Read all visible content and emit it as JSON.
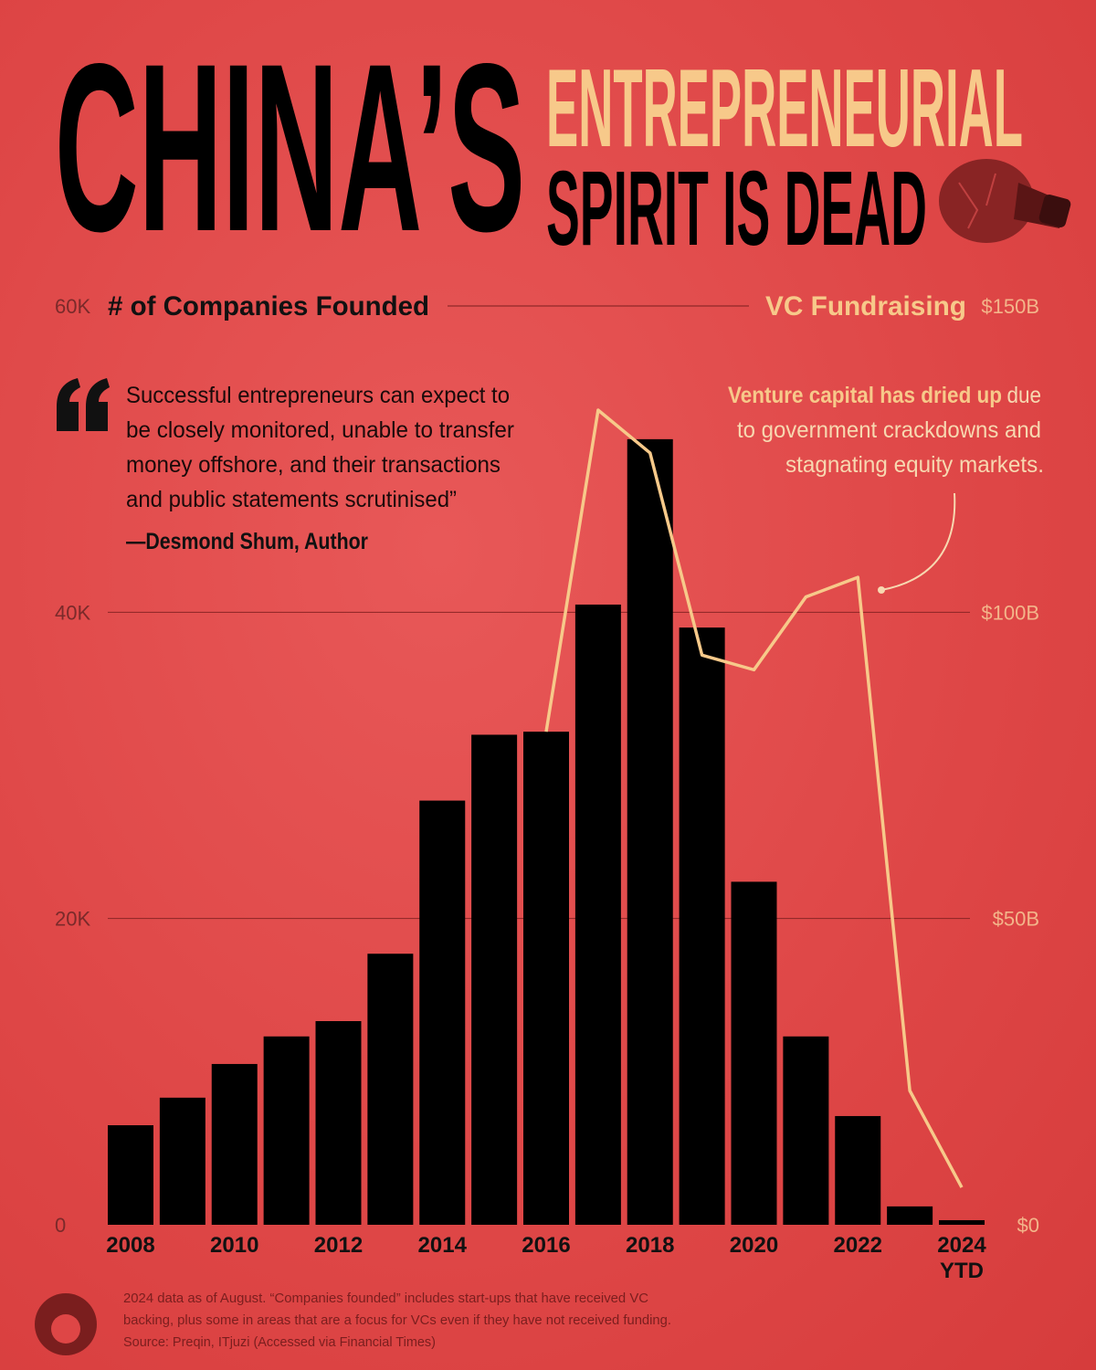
{
  "title": {
    "line1": "CHINA’S",
    "line2": "ENTREPRENEURIAL",
    "line3": "SPIRIT IS DEAD"
  },
  "quote": {
    "lines": [
      "Successful entrepreneurs can expect to",
      "be closely monitored, unable to transfer",
      "money offshore, and their transactions",
      "and public statements scrutinised”"
    ],
    "attribution": "—Desmond Shum, Author"
  },
  "annotation": {
    "bold": "Venture capital has dried up",
    "lines": [
      "due",
      "to government crackdowns and",
      "stagnating equity markets."
    ]
  },
  "footnote": [
    "2024 data as of August. “Companies founded” includes start-ups that have received VC",
    "backing, plus some in areas that are a focus for VCs even if they have not received funding.",
    "Source: Preqin, ITjuzi (Accessed via Financial Times)"
  ],
  "chart_data": {
    "type": "bar",
    "categories": [
      "2008",
      null,
      "2010",
      null,
      "2012",
      null,
      "2014",
      null,
      "2016",
      null,
      "2018",
      null,
      "2020",
      null,
      "2022",
      null,
      "2024 YTD"
    ],
    "series": [
      {
        "name": "# of Companies Founded",
        "type": "bar",
        "color": "#000000",
        "values": [
          6500,
          8300,
          10500,
          12300,
          13300,
          17700,
          27700,
          32000,
          32200,
          40500,
          51300,
          39000,
          22400,
          12300,
          7100,
          1200,
          300
        ]
      },
      {
        "name": "VC Fundraising",
        "type": "line",
        "axis": "y2",
        "color": "#f7c98a",
        "values": [
          null,
          null,
          null,
          null,
          null,
          null,
          null,
          null,
          80500000000,
          133000000000,
          126000000000,
          93000000000,
          90600000000,
          102500000000,
          105700000000,
          21900000000,
          6100000000
        ]
      }
    ],
    "ylim": [
      0,
      60000
    ],
    "yticks": [
      0,
      {
        "value": 20000,
        "label": "20K"
      },
      {
        "value": 40000,
        "label": "40K"
      },
      {
        "value": 60000,
        "label": "60K"
      }
    ],
    "y2lim": [
      0,
      150000000000
    ],
    "y2ticks": [
      {
        "value": 0,
        "label": "$0"
      },
      {
        "value": 50000000000,
        "label": "$50B"
      },
      {
        "value": 100000000000,
        "label": "$100B"
      },
      {
        "value": 150000000000,
        "label": "$150B"
      }
    ],
    "grid": true
  }
}
